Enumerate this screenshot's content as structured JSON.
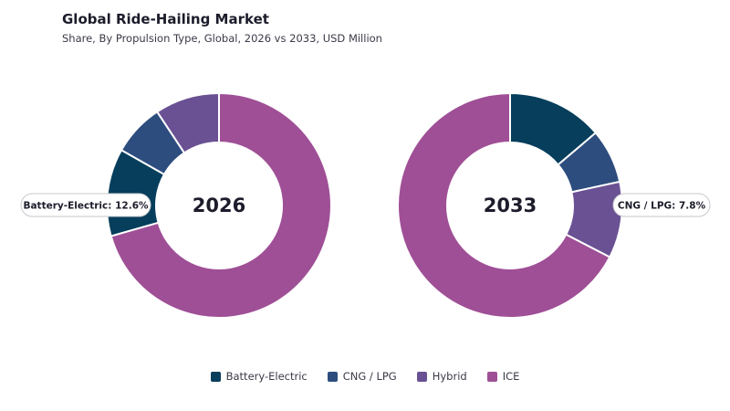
{
  "header": {
    "title": "Global Ride-Hailing Market",
    "subtitle": "Share, By Propulsion Type, Global, 2026 vs 2033, USD Million"
  },
  "colors": {
    "Battery-Electric": "#063e5c",
    "CNG / LPG": "#2d4d7e",
    "Hybrid": "#6a5193",
    "ICE": "#9f4f96"
  },
  "chart_data": [
    {
      "type": "pie",
      "center_label": "2026",
      "categories": [
        "Battery-Electric",
        "CNG / LPG",
        "Hybrid",
        "ICE"
      ],
      "values": [
        12.6,
        7.5,
        9.3,
        70.6
      ],
      "callout": "Battery-Electric: 12.6%",
      "callout_category": "Battery-Electric"
    },
    {
      "type": "pie",
      "center_label": "2033",
      "categories": [
        "Battery-Electric",
        "CNG / LPG",
        "Hybrid",
        "ICE"
      ],
      "values": [
        13.8,
        7.8,
        11.0,
        67.4
      ],
      "callout": "CNG / LPG: 7.8%",
      "callout_category": "CNG / LPG"
    }
  ],
  "legend": {
    "items": [
      "Battery-Electric",
      "CNG / LPG",
      "Hybrid",
      "ICE"
    ]
  }
}
